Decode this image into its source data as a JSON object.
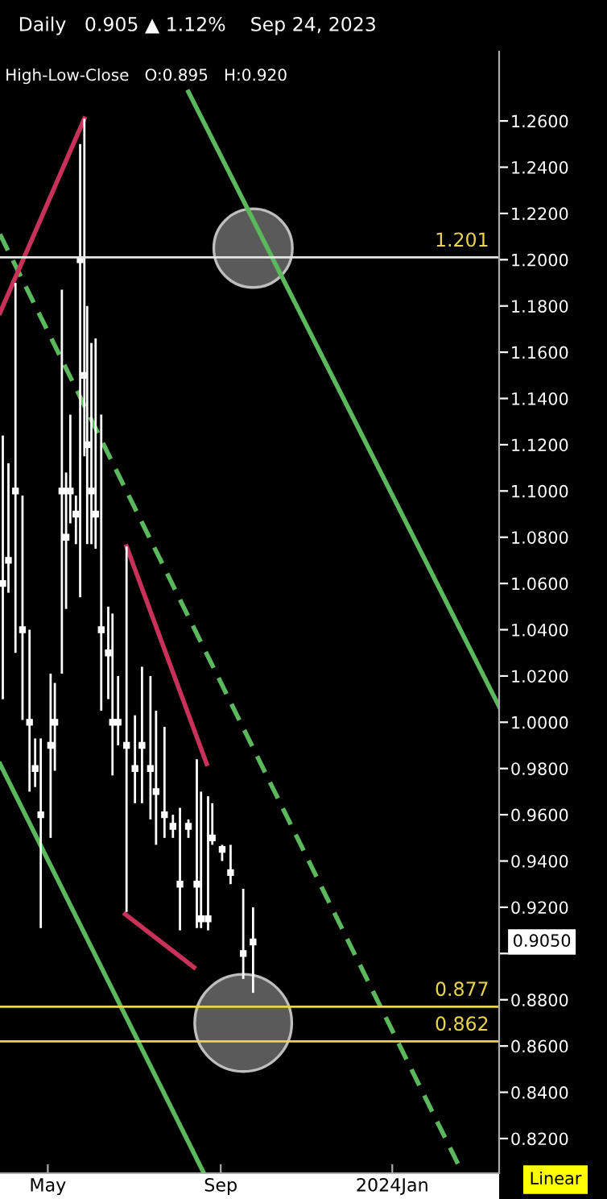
{
  "chart_data": {
    "type": "scatter",
    "title": "Daily   0.905 ▲ 1.12%    Sep 24, 2023",
    "subtitle": "High-Low-Close   O:0.895   H:0.920",
    "x": [
      "2023-03-30",
      "2023-04-03",
      "2023-04-08",
      "2023-04-13",
      "2023-04-18",
      "2023-04-22",
      "2023-04-26",
      "2023-05-03",
      "2023-05-06",
      "2023-05-11",
      "2023-05-14",
      "2023-05-17",
      "2023-05-21",
      "2023-05-24",
      "2023-05-27",
      "2023-05-29",
      "2023-06-01",
      "2023-06-04",
      "2023-06-08",
      "2023-06-13",
      "2023-06-16",
      "2023-06-20",
      "2023-06-26",
      "2023-07-02",
      "2023-07-07",
      "2023-07-13",
      "2023-07-17",
      "2023-07-23",
      "2023-07-29",
      "2023-08-03",
      "2023-08-09",
      "2023-08-15",
      "2023-08-18",
      "2023-08-23",
      "2023-08-26",
      "2023-09-02",
      "2023-09-08",
      "2023-09-17",
      "2023-09-24"
    ],
    "values": [
      1.06,
      1.07,
      1.1,
      1.04,
      1.0,
      0.98,
      0.96,
      0.99,
      1.0,
      1.1,
      1.08,
      1.1,
      1.09,
      1.2,
      1.15,
      1.12,
      1.1,
      1.09,
      1.04,
      1.03,
      1.0,
      1.0,
      0.99,
      0.98,
      0.99,
      0.98,
      0.97,
      0.96,
      0.955,
      0.93,
      0.955,
      0.93,
      0.915,
      0.915,
      0.95,
      0.945,
      0.935,
      0.9,
      0.905
    ],
    "errors": [
      [
        1.01,
        1.124
      ],
      [
        1.056,
        1.112
      ],
      [
        1.03,
        1.19
      ],
      [
        1.001,
        1.098
      ],
      [
        0.97,
        1.04
      ],
      [
        0.972,
        0.993
      ],
      [
        0.911,
        0.993
      ],
      [
        0.95,
        1.021
      ],
      [
        0.979,
        1.017
      ],
      [
        1.021,
        1.187
      ],
      [
        1.049,
        1.108
      ],
      [
        1.086,
        1.133
      ],
      [
        1.077,
        1.098
      ],
      [
        1.054,
        1.25
      ],
      [
        1.115,
        1.261
      ],
      [
        1.077,
        1.18
      ],
      [
        1.077,
        1.164
      ],
      [
        1.075,
        1.166
      ],
      [
        1.005,
        1.133
      ],
      [
        1.01,
        1.05
      ],
      [
        0.977,
        1.047
      ],
      [
        0.99,
        1.02
      ],
      [
        0.918,
        1.076
      ],
      [
        0.965,
        1.003
      ],
      [
        0.965,
        1.024
      ],
      [
        0.958,
        1.02
      ],
      [
        0.947,
        1.005
      ],
      [
        0.95,
        0.998
      ],
      [
        0.95,
        0.96
      ],
      [
        0.91,
        0.963
      ],
      [
        0.95,
        0.958
      ],
      [
        0.911,
        0.984
      ],
      [
        0.911,
        0.97
      ],
      [
        0.91,
        0.968
      ],
      [
        0.947,
        0.965
      ],
      [
        0.94,
        0.947
      ],
      [
        0.93,
        0.947
      ],
      [
        0.889,
        0.928
      ],
      [
        0.883,
        0.92
      ]
    ],
    "color": "#ffffff",
    "series": [
      {
        "type": "line",
        "marker": "none",
        "line_style": "solid",
        "color": "#5cb85c",
        "x": [
          "2023-08-09",
          "2024-03-17"
        ],
        "values": [
          1.2726,
          1.0068
        ]
      },
      {
        "type": "line",
        "marker": "none",
        "line_style": "dashed",
        "color": "#5cb85c",
        "x": [
          "2023-03-28",
          "2024-02-20"
        ],
        "values": [
          1.211,
          0.805
        ]
      },
      {
        "type": "line",
        "marker": "none",
        "line_style": "solid",
        "color": "#5cb85c",
        "x": [
          "2023-03-28",
          "2023-08-20"
        ],
        "values": [
          0.982,
          0.805
        ]
      },
      {
        "type": "line",
        "marker": "none",
        "line_style": "solid",
        "color": "#c8325a",
        "x": [
          "2023-03-28",
          "2023-05-27"
        ],
        "values": [
          1.177,
          1.261
        ]
      },
      {
        "type": "line",
        "marker": "none",
        "line_style": "solid",
        "color": "#c8325a",
        "x": [
          "2023-06-26",
          "2023-08-22"
        ],
        "values": [
          1.076,
          0.982
        ]
      },
      {
        "type": "line",
        "marker": "none",
        "line_style": "solid",
        "color": "#c8325a",
        "x": [
          "2023-06-25",
          "2023-08-13"
        ],
        "values": [
          0.917,
          0.894
        ]
      }
    ],
    "ref_lines": [
      {
        "axis": "y",
        "value": 1.201,
        "label": "1.201",
        "color": "#e6e6e6"
      },
      {
        "axis": "y",
        "value": 0.877,
        "label": "0.877",
        "color": "#e8d44d"
      },
      {
        "axis": "y",
        "value": 0.862,
        "label": "0.862",
        "color": "#e8d44d"
      }
    ],
    "annotations": [
      "0.9050",
      "Linear"
    ],
    "xlim": [
      "2023-03-28",
      "2024-03-17"
    ],
    "xticks": [
      {
        "value": "2023-05-01",
        "label": "May"
      },
      {
        "value": "2023-09-01",
        "label": "Sep"
      },
      {
        "value": "2024-01-01",
        "label": "2024Jan"
      }
    ],
    "ylim": [
      0.805,
      1.29
    ],
    "yticks": [
      {
        "value": 0.82,
        "label": "0.8200"
      },
      {
        "value": 0.84,
        "label": "0.8400"
      },
      {
        "value": 0.86,
        "label": "0.8600"
      },
      {
        "value": 0.88,
        "label": "0.8800"
      },
      {
        "value": 0.9,
        "label": null
      },
      {
        "value": 0.92,
        "label": "0.9200"
      },
      {
        "value": 0.94,
        "label": "0.9400"
      },
      {
        "value": 0.96,
        "label": "0.9600"
      },
      {
        "value": 0.98,
        "label": "0.9800"
      },
      {
        "value": 1.0,
        "label": "1.0000"
      },
      {
        "value": 1.02,
        "label": "1.0200"
      },
      {
        "value": 1.04,
        "label": "1.0400"
      },
      {
        "value": 1.06,
        "label": "1.0600"
      },
      {
        "value": 1.08,
        "label": "1.0800"
      },
      {
        "value": 1.1,
        "label": "1.1000"
      },
      {
        "value": 1.12,
        "label": "1.1200"
      },
      {
        "value": 1.14,
        "label": "1.1400"
      },
      {
        "value": 1.16,
        "label": "1.1600"
      },
      {
        "value": 1.18,
        "label": "1.1800"
      },
      {
        "value": 1.2,
        "label": "1.2000"
      },
      {
        "value": 1.22,
        "label": "1.2200"
      },
      {
        "value": 1.24,
        "label": "1.2400"
      },
      {
        "value": 1.26,
        "label": "1.2600"
      }
    ],
    "grid": false,
    "legend": false,
    "marker": "square"
  }
}
